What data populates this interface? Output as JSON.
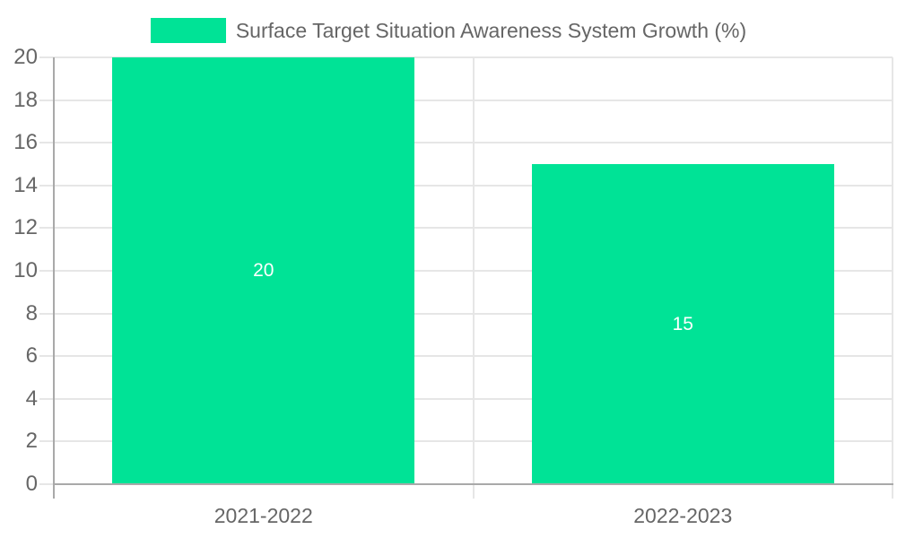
{
  "legend": {
    "label": "Surface Target Situation Awareness System Growth (%)"
  },
  "chart_data": {
    "type": "bar",
    "title": "",
    "legend_entries": [
      "Surface Target Situation Awareness System Growth (%)"
    ],
    "legend_position": "top-center",
    "categories": [
      "2021-2022",
      "2022-2023"
    ],
    "values": [
      20,
      15
    ],
    "data_labels": [
      "20",
      "15"
    ],
    "xlabel": "",
    "ylabel": "",
    "ylim": [
      0,
      20
    ],
    "ytick_step": 2,
    "ytick_labels": [
      "0",
      "2",
      "4",
      "6",
      "8",
      "10",
      "12",
      "14",
      "16",
      "18",
      "20"
    ],
    "grid": true,
    "colors": {
      "bar": "#00E396",
      "grid": "#E6E6E6",
      "axis": "#A9A9A9",
      "tick_label": "#666666",
      "legend_text": "#666666",
      "data_label": "#FFFFFF",
      "background": "#FFFFFF"
    }
  }
}
